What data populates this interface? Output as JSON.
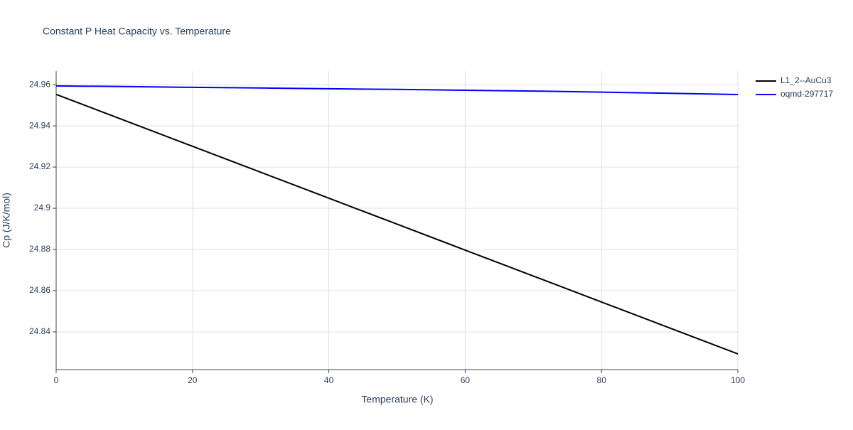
{
  "chart_data": {
    "type": "line",
    "title": "Constant P Heat Capacity vs. Temperature",
    "x_label": "Temperature (K)",
    "y_label": "Cp (J/K/mol)",
    "x": [
      0,
      10,
      20,
      30,
      40,
      50,
      60,
      70,
      80,
      90,
      100
    ],
    "series": [
      {
        "name": "L1_2--AuCu3",
        "color": "#000000",
        "values": [
          24.9553,
          24.9427,
          24.9301,
          24.9175,
          24.9049,
          24.8923,
          24.8797,
          24.8671,
          24.8545,
          24.8419,
          24.8293
        ]
      },
      {
        "name": "oqmd-297717",
        "color": "#0000ff",
        "values": [
          24.9594,
          24.9591,
          24.9587,
          24.9584,
          24.958,
          24.9577,
          24.9573,
          24.9569,
          24.9564,
          24.9558,
          24.9552
        ]
      }
    ],
    "xlim": [
      0,
      100
    ],
    "xticks": [
      0,
      20,
      40,
      60,
      80,
      100
    ],
    "ylim": [
      24.8217,
      24.9666
    ],
    "yticks": [
      24.84,
      24.86,
      24.88,
      24.9,
      24.92,
      24.94,
      24.96
    ],
    "grid": true,
    "legend": "outside-right"
  }
}
